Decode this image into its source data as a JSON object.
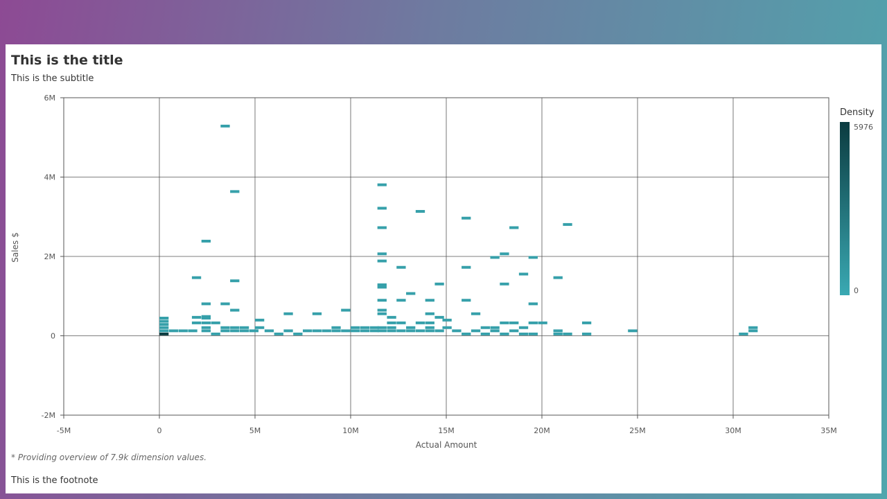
{
  "header": {
    "title": "This is the title",
    "subtitle": "This is the subtitle"
  },
  "note": "* Providing overview of 7.9k dimension values.",
  "footnote": "This is the footnote",
  "colors": {
    "low": "#3aa9b3",
    "high": "#0b3b40",
    "grid": "#555555"
  },
  "chart_data": {
    "type": "heatmap",
    "xlabel": "Actual Amount",
    "ylabel": "Sales $",
    "xlim": [
      -5000000,
      35000000
    ],
    "ylim": [
      -2000000,
      6000000
    ],
    "x_ticks": [
      -5000000,
      0,
      5000000,
      10000000,
      15000000,
      20000000,
      25000000,
      30000000,
      35000000
    ],
    "x_tick_labels": [
      "-5M",
      "0",
      "5M",
      "10M",
      "15M",
      "20M",
      "25M",
      "30M",
      "35M"
    ],
    "y_ticks": [
      -2000000,
      0,
      2000000,
      4000000,
      6000000
    ],
    "y_tick_labels": [
      "-2M",
      "0",
      "2M",
      "4M",
      "6M"
    ],
    "grid": true,
    "legend": {
      "title": "Density",
      "max": 5976,
      "min": 0,
      "placement": "right"
    },
    "points": [
      [
        0,
        0,
        5976
      ],
      [
        0,
        80000,
        1
      ],
      [
        0,
        160000,
        1
      ],
      [
        0,
        240000,
        1
      ],
      [
        0,
        320000,
        1
      ],
      [
        0,
        400000,
        1
      ],
      [
        500000,
        80000,
        1
      ],
      [
        1000000,
        80000,
        1
      ],
      [
        1500000,
        80000,
        1
      ],
      [
        1700000,
        280000,
        1
      ],
      [
        1700000,
        420000,
        1
      ],
      [
        1700000,
        1420000,
        1
      ],
      [
        2200000,
        80000,
        1
      ],
      [
        2200000,
        160000,
        1
      ],
      [
        2200000,
        280000,
        1
      ],
      [
        2200000,
        400000,
        1
      ],
      [
        2200000,
        440000,
        1
      ],
      [
        2200000,
        760000,
        1
      ],
      [
        2200000,
        2340000,
        1
      ],
      [
        2700000,
        0,
        1
      ],
      [
        2700000,
        280000,
        1
      ],
      [
        3200000,
        80000,
        1
      ],
      [
        3200000,
        160000,
        1
      ],
      [
        3200000,
        760000,
        1
      ],
      [
        3200000,
        5240000,
        1
      ],
      [
        3700000,
        80000,
        1
      ],
      [
        3700000,
        160000,
        1
      ],
      [
        3700000,
        600000,
        1
      ],
      [
        3700000,
        1340000,
        1
      ],
      [
        3700000,
        3590000,
        1
      ],
      [
        4200000,
        80000,
        1
      ],
      [
        4200000,
        160000,
        1
      ],
      [
        4700000,
        80000,
        1
      ],
      [
        5000000,
        160000,
        1
      ],
      [
        5000000,
        350000,
        1
      ],
      [
        5500000,
        80000,
        1
      ],
      [
        6000000,
        0,
        1
      ],
      [
        6500000,
        80000,
        1
      ],
      [
        6500000,
        510000,
        1
      ],
      [
        7000000,
        0,
        1
      ],
      [
        7500000,
        80000,
        1
      ],
      [
        8000000,
        80000,
        1
      ],
      [
        8000000,
        510000,
        1
      ],
      [
        8500000,
        80000,
        1
      ],
      [
        9000000,
        80000,
        1
      ],
      [
        9000000,
        160000,
        1
      ],
      [
        9500000,
        80000,
        1
      ],
      [
        9500000,
        600000,
        1
      ],
      [
        10000000,
        80000,
        1
      ],
      [
        10000000,
        160000,
        1
      ],
      [
        10500000,
        80000,
        1
      ],
      [
        10500000,
        160000,
        1
      ],
      [
        11000000,
        80000,
        1
      ],
      [
        11000000,
        160000,
        1
      ],
      [
        11400000,
        80000,
        1
      ],
      [
        11400000,
        160000,
        1
      ],
      [
        11400000,
        510000,
        1
      ],
      [
        11400000,
        600000,
        1
      ],
      [
        11400000,
        850000,
        1
      ],
      [
        11400000,
        1180000,
        1
      ],
      [
        11400000,
        1240000,
        1
      ],
      [
        11400000,
        1840000,
        1
      ],
      [
        11400000,
        2020000,
        1
      ],
      [
        11400000,
        2680000,
        1
      ],
      [
        11400000,
        3170000,
        1
      ],
      [
        11400000,
        3760000,
        1
      ],
      [
        11900000,
        80000,
        1
      ],
      [
        11900000,
        160000,
        1
      ],
      [
        11900000,
        280000,
        1
      ],
      [
        11900000,
        420000,
        1
      ],
      [
        12400000,
        80000,
        1
      ],
      [
        12400000,
        280000,
        1
      ],
      [
        12400000,
        850000,
        1
      ],
      [
        12400000,
        1680000,
        1
      ],
      [
        12900000,
        80000,
        1
      ],
      [
        12900000,
        160000,
        1
      ],
      [
        12900000,
        1020000,
        1
      ],
      [
        13400000,
        80000,
        1
      ],
      [
        13400000,
        280000,
        1
      ],
      [
        13400000,
        3090000,
        1
      ],
      [
        13900000,
        80000,
        1
      ],
      [
        13900000,
        160000,
        1
      ],
      [
        13900000,
        280000,
        1
      ],
      [
        13900000,
        510000,
        1
      ],
      [
        13900000,
        850000,
        1
      ],
      [
        14400000,
        80000,
        1
      ],
      [
        14400000,
        420000,
        1
      ],
      [
        14400000,
        1260000,
        1
      ],
      [
        14800000,
        160000,
        1
      ],
      [
        14800000,
        350000,
        1
      ],
      [
        15300000,
        80000,
        1
      ],
      [
        15800000,
        0,
        1
      ],
      [
        15800000,
        850000,
        1
      ],
      [
        15800000,
        1680000,
        1
      ],
      [
        15800000,
        2920000,
        1
      ],
      [
        16300000,
        80000,
        1
      ],
      [
        16300000,
        510000,
        1
      ],
      [
        16800000,
        0,
        1
      ],
      [
        16800000,
        160000,
        1
      ],
      [
        17300000,
        80000,
        1
      ],
      [
        17300000,
        160000,
        1
      ],
      [
        17300000,
        1930000,
        1
      ],
      [
        17800000,
        0,
        1
      ],
      [
        17800000,
        280000,
        1
      ],
      [
        17800000,
        1260000,
        1
      ],
      [
        17800000,
        2020000,
        1
      ],
      [
        18300000,
        80000,
        1
      ],
      [
        18300000,
        280000,
        1
      ],
      [
        18300000,
        2680000,
        1
      ],
      [
        18800000,
        0,
        1
      ],
      [
        18800000,
        160000,
        1
      ],
      [
        18800000,
        1510000,
        1
      ],
      [
        19300000,
        0,
        1
      ],
      [
        19300000,
        280000,
        1
      ],
      [
        19300000,
        760000,
        1
      ],
      [
        19300000,
        1930000,
        1
      ],
      [
        19800000,
        280000,
        1
      ],
      [
        20600000,
        0,
        1
      ],
      [
        20600000,
        80000,
        1
      ],
      [
        20600000,
        1420000,
        1
      ],
      [
        21100000,
        0,
        1
      ],
      [
        21100000,
        2760000,
        1
      ],
      [
        22100000,
        0,
        1
      ],
      [
        22100000,
        280000,
        1
      ],
      [
        24500000,
        80000,
        1
      ],
      [
        30300000,
        0,
        1
      ],
      [
        30800000,
        80000,
        1
      ],
      [
        30800000,
        160000,
        1
      ]
    ]
  }
}
